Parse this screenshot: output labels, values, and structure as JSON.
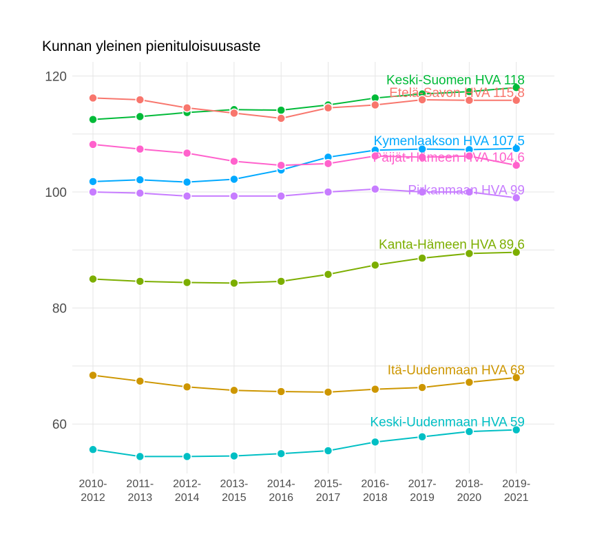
{
  "chart_data": {
    "type": "line",
    "title": "Kunnan yleinen pienituloisuusaste",
    "xlabel": "",
    "ylabel": "",
    "ylim": [
      52,
      122
    ],
    "yticks": [
      60,
      80,
      100,
      120
    ],
    "grid": true,
    "categories": [
      [
        "2010-",
        "2012"
      ],
      [
        "2011-",
        "2013"
      ],
      [
        "2012-",
        "2014"
      ],
      [
        "2013-",
        "2015"
      ],
      [
        "2014-",
        "2016"
      ],
      [
        "2015-",
        "2017"
      ],
      [
        "2016-",
        "2018"
      ],
      [
        "2017-",
        "2019"
      ],
      [
        "2018-",
        "2020"
      ],
      [
        "2019-",
        "2021"
      ]
    ],
    "series": [
      {
        "name": "Keski-Suomen HVA",
        "label": "Keski-Suomen HVA 118",
        "color": "#00ba38",
        "values": [
          112.5,
          113.0,
          113.7,
          114.2,
          114.1,
          115.0,
          116.2,
          116.9,
          117.3,
          118.0
        ]
      },
      {
        "name": "Etelä-Savon HVA",
        "label": "Etelä-Savon HVA 115.8",
        "color": "#f8766d",
        "values": [
          116.2,
          115.9,
          114.5,
          113.6,
          112.7,
          114.5,
          115.0,
          115.9,
          115.8,
          115.8
        ]
      },
      {
        "name": "Kymenlaakson HVA",
        "label": "Kymenlaakson HVA 107.5",
        "color": "#00a9ff",
        "values": [
          101.8,
          102.1,
          101.7,
          102.2,
          103.8,
          106.0,
          107.2,
          107.4,
          107.3,
          107.5
        ]
      },
      {
        "name": "Päijät-Hämeen HVA",
        "label": "Päijät-Hämeen HVA 104.6",
        "color": "#ff61cc",
        "values": [
          108.2,
          107.4,
          106.7,
          105.3,
          104.6,
          104.9,
          106.2,
          106.0,
          106.2,
          104.6
        ]
      },
      {
        "name": "Pirkanmaan HVA",
        "label": "Pirkanmaan HVA 99",
        "color": "#c77cff",
        "values": [
          100.0,
          99.8,
          99.3,
          99.3,
          99.3,
          100.0,
          100.5,
          100.0,
          100.0,
          99.0
        ]
      },
      {
        "name": "Kanta-Hämeen HVA",
        "label": "Kanta-Hämeen HVA 89.6",
        "color": "#7cae00",
        "values": [
          85.0,
          84.6,
          84.4,
          84.3,
          84.6,
          85.8,
          87.4,
          88.6,
          89.4,
          89.6
        ]
      },
      {
        "name": "Itä-Uudenmaan HVA",
        "label": "Itä-Uudenmaan HVA 68",
        "color": "#cd9600",
        "values": [
          68.4,
          67.4,
          66.4,
          65.8,
          65.6,
          65.5,
          66.0,
          66.3,
          67.2,
          68.0
        ]
      },
      {
        "name": "Keski-Uudenmaan HVA",
        "label": "Keski-Uudenmaan HVA 59",
        "color": "#00bfc4",
        "values": [
          55.6,
          54.4,
          54.4,
          54.5,
          54.9,
          55.4,
          56.9,
          57.8,
          58.7,
          59.0
        ]
      }
    ]
  }
}
